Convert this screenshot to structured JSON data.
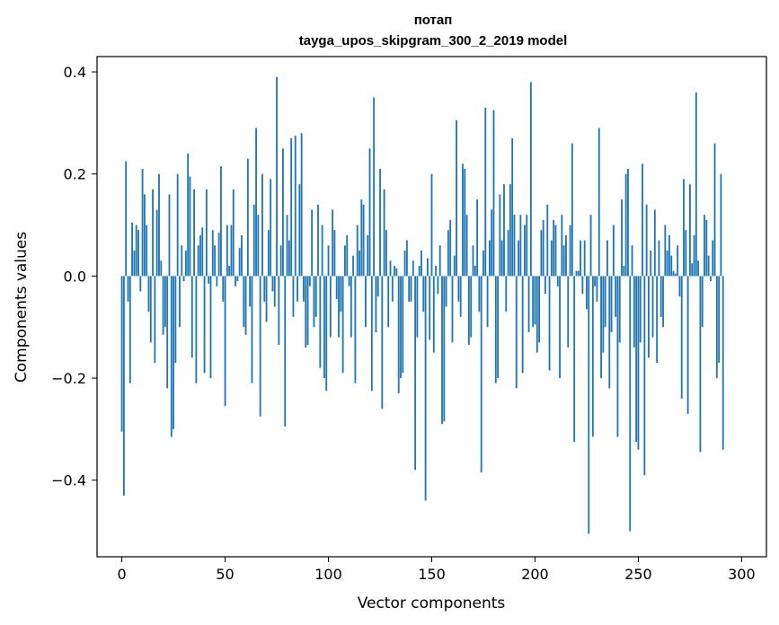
{
  "chart_data": {
    "type": "bar",
    "title": "потап",
    "subtitle": "tayga_upos_skipgram_300_2_2019 model",
    "xlabel": "Vector components",
    "ylabel": "Components values",
    "xlim": [
      -12,
      312
    ],
    "ylim": [
      -0.55,
      0.43
    ],
    "xticks": [
      0,
      50,
      100,
      150,
      200,
      250,
      300
    ],
    "xtick_labels": [
      "0",
      "50",
      "100",
      "150",
      "200",
      "250",
      "300"
    ],
    "yticks": [
      -0.4,
      -0.2,
      0.0,
      0.2,
      0.4
    ],
    "ytick_labels": [
      "−0.4",
      "−0.2",
      "0.0",
      "0.2",
      "0.4"
    ],
    "bar_color": "#1f77b4",
    "values": [
      -0.305,
      -0.43,
      0.225,
      -0.05,
      -0.21,
      0.105,
      0.05,
      0.1,
      0.09,
      -0.03,
      0.21,
      0.16,
      0.1,
      -0.07,
      -0.13,
      0.17,
      -0.17,
      0.13,
      0.2,
      0.03,
      -0.115,
      -0.1,
      -0.22,
      0.16,
      -0.315,
      -0.3,
      -0.17,
      0.2,
      -0.1,
      0.06,
      -0.01,
      0.05,
      0.24,
      0.195,
      -0.16,
      0.17,
      -0.21,
      0.06,
      0.08,
      0.095,
      -0.19,
      0.17,
      -0.015,
      -0.2,
      0.09,
      0.06,
      -0.02,
      0.085,
      0.215,
      -0.05,
      -0.255,
      0.1,
      0.02,
      0.1,
      0.17,
      -0.02,
      -0.01,
      0.055,
      0.08,
      -0.1,
      -0.115,
      0.23,
      -0.06,
      -0.21,
      0.14,
      0.29,
      0.12,
      -0.275,
      0.2,
      -0.05,
      -0.09,
      0.09,
      0.19,
      -0.03,
      -0.06,
      0.39,
      -0.135,
      0.06,
      0.25,
      -0.295,
      0.12,
      0.07,
      0.27,
      -0.08,
      0.275,
      -0.05,
      0.18,
      0.28,
      -0.05,
      -0.14,
      -0.135,
      -0.02,
      0.13,
      -0.1,
      -0.08,
      0.14,
      -0.18,
      0.1,
      -0.2,
      -0.225,
      0.06,
      -0.12,
      0.13,
      0.09,
      -0.045,
      -0.12,
      -0.07,
      -0.19,
      0.06,
      0.08,
      -0.02,
      -0.12,
      0.04,
      -0.21,
      0.1,
      0.05,
      0.15,
      0.14,
      -0.1,
      0.08,
      0.25,
      -0.225,
      0.35,
      -0.11,
      -0.04,
      0.21,
      -0.26,
      0.17,
      0.09,
      -0.1,
      0.03,
      -0.05,
      0.02,
      0.015,
      -0.23,
      -0.2,
      -0.19,
      0.05,
      0.07,
      -0.05,
      -0.05,
      0.03,
      -0.38,
      -0.12,
      0.02,
      0.05,
      -0.07,
      -0.44,
      0.035,
      -0.125,
      0.2,
      -0.15,
      0.02,
      -0.035,
      0.06,
      -0.29,
      -0.285,
      -0.06,
      0.09,
      0.11,
      -0.13,
      0.04,
      0.305,
      -0.05,
      -0.08,
      0.22,
      0.21,
      0.12,
      -0.135,
      -0.12,
      0.06,
      0.02,
      0.15,
      -0.07,
      -0.385,
      0.05,
      0.33,
      -0.1,
      0.07,
      0.13,
      0.325,
      -0.21,
      -0.2,
      0.16,
      0.07,
      0.18,
      -0.07,
      0.09,
      0.18,
      0.27,
      0.12,
      -0.22,
      0.07,
      0.12,
      -0.19,
      0.1,
      0.12,
      -0.11,
      0.38,
      -0.1,
      -0.095,
      -0.15,
      -0.13,
      0.09,
      0.11,
      -0.035,
      0.14,
      -0.185,
      0.07,
      0.11,
      0.1,
      -0.02,
      -0.2,
      0.12,
      0.06,
      0.08,
      -0.14,
      0.1,
      0.26,
      -0.325,
      0.01,
      0.01,
      0.07,
      -0.035,
      0.07,
      -0.065,
      -0.505,
      0.12,
      -0.315,
      -0.02,
      -0.05,
      0.29,
      -0.2,
      -0.15,
      -0.1,
      0.07,
      -0.22,
      -0.11,
      0.1,
      -0.08,
      -0.315,
      -0.13,
      0.15,
      0.02,
      0.2,
      0.21,
      -0.5,
      0.06,
      -0.14,
      -0.325,
      -0.34,
      -0.13,
      0.22,
      -0.39,
      0.14,
      -0.16,
      0.05,
      -0.12,
      0.13,
      -0.17,
      0.07,
      -0.08,
      -0.1,
      0.1,
      0.05,
      0.08,
      0.04,
      0.01,
      0.005,
      0.06,
      -0.04,
      -0.24,
      0.19,
      0.09,
      -0.27,
      0.18,
      0.025,
      0.08,
      0.36,
      0.03,
      -0.345,
      -0.1,
      0.12,
      0.11,
      0.04,
      -0.01,
      0.07,
      0.26,
      -0.2,
      -0.17,
      0.2,
      -0.34
    ]
  }
}
